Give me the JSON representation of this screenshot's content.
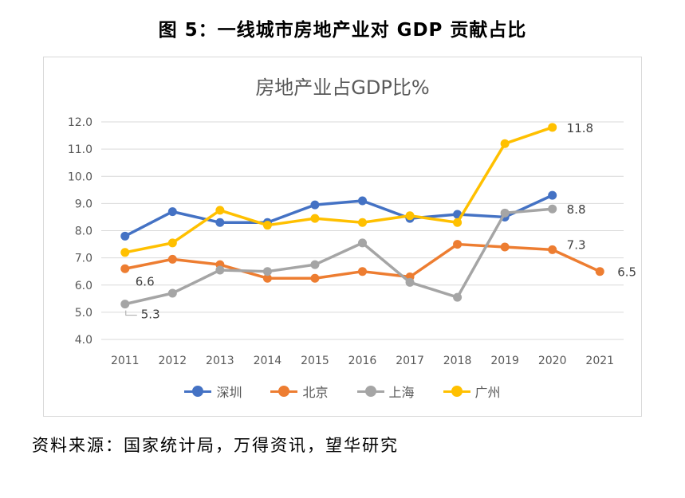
{
  "figure_title": "图 5：一线城市房地产业对 GDP 贡献占比",
  "source_note": "资料来源：国家统计局，万得资讯，望华研究",
  "chart_data": {
    "type": "line",
    "title": "房地产业占GDP比%",
    "xlabel": "",
    "ylabel": "",
    "categories": [
      "2011",
      "2012",
      "2013",
      "2014",
      "2015",
      "2016",
      "2017",
      "2018",
      "2019",
      "2020",
      "2021"
    ],
    "ylim": [
      4.0,
      12.0
    ],
    "yticks": [
      "4.0",
      "5.0",
      "6.0",
      "7.0",
      "8.0",
      "9.0",
      "10.0",
      "11.0",
      "12.0"
    ],
    "grid": true,
    "legend_position": "bottom",
    "series": [
      {
        "name": "深圳",
        "color": "#4472C4",
        "values": [
          7.8,
          8.7,
          8.3,
          8.3,
          8.95,
          9.1,
          8.45,
          8.6,
          8.5,
          9.3,
          null
        ]
      },
      {
        "name": "北京",
        "color": "#ED7D31",
        "values": [
          6.6,
          6.95,
          6.75,
          6.25,
          6.25,
          6.5,
          6.3,
          7.5,
          7.4,
          7.3,
          6.5
        ]
      },
      {
        "name": "上海",
        "color": "#A5A5A5",
        "values": [
          5.3,
          5.7,
          6.55,
          6.5,
          6.75,
          7.55,
          6.1,
          5.55,
          8.65,
          8.8,
          null
        ]
      },
      {
        "name": "广州",
        "color": "#FFC000",
        "values": [
          7.2,
          7.55,
          8.75,
          8.2,
          8.45,
          8.3,
          8.55,
          8.3,
          11.2,
          11.8,
          null
        ]
      }
    ],
    "annotations": [
      {
        "series": "广州",
        "category": "2020",
        "text": "11.8"
      },
      {
        "series": "上海",
        "category": "2020",
        "text": "8.8"
      },
      {
        "series": "北京",
        "category": "2020",
        "text": "7.3"
      },
      {
        "series": "北京",
        "category": "2021",
        "text": "6.5"
      },
      {
        "series": "北京",
        "category": "2011",
        "text": "6.6"
      },
      {
        "series": "上海",
        "category": "2011",
        "text": "5.3"
      }
    ]
  }
}
